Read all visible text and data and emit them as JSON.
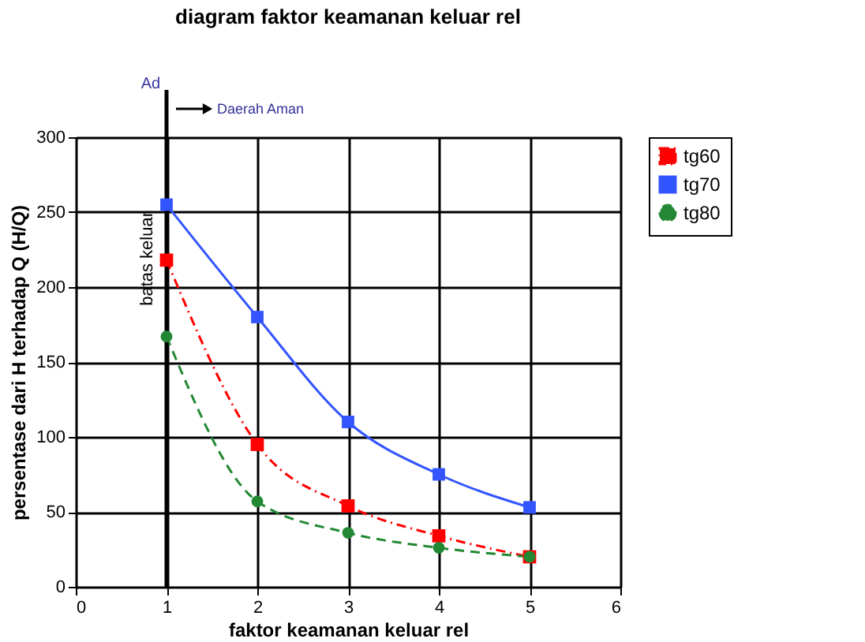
{
  "chart_data": {
    "type": "line",
    "title": "diagram faktor keamanan keluar rel",
    "xlabel": "faktor keamanan keluar rel",
    "ylabel": "persentase dari H terhadap Q (H/Q)",
    "x": [
      1,
      2,
      3,
      4,
      5
    ],
    "series": [
      {
        "name": "tg60",
        "color": "#ff0000",
        "values": [
          218,
          95,
          54,
          34,
          20
        ],
        "line_style": "dashdot",
        "marker": "square"
      },
      {
        "name": "tg70",
        "color": "#3355ff",
        "values": [
          255,
          180,
          110,
          75,
          53
        ],
        "line_style": "solid",
        "marker": "square"
      },
      {
        "name": "tg80",
        "color": "#228833",
        "values": [
          167,
          57,
          36,
          26,
          20
        ],
        "line_style": "dashed",
        "marker": "circle"
      }
    ],
    "xlim": [
      0,
      6
    ],
    "xticks": [
      0,
      1,
      2,
      3,
      4,
      5,
      6
    ],
    "ylim": [
      0,
      300
    ],
    "yticks": [
      0,
      50,
      100,
      150,
      200,
      250,
      300
    ],
    "grid": true,
    "legend": "right",
    "ref_lines": [
      {
        "axis": "x",
        "value": 1,
        "label": "Ad",
        "color": "#000000"
      }
    ],
    "annotations": [
      "batas keluar",
      "Daerah Aman"
    ]
  }
}
